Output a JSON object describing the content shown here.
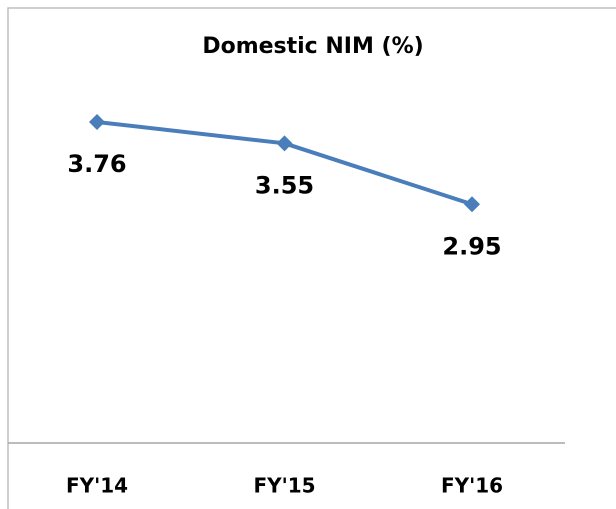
{
  "chart_data": {
    "type": "line",
    "title": "Domestic NIM (%)",
    "categories": [
      "FY'14",
      "FY'15",
      "FY'16"
    ],
    "series": [
      {
        "name": "Domestic NIM",
        "color": "#4a7ebb",
        "values": [
          3.76,
          3.55,
          2.95
        ]
      }
    ],
    "ylim": [
      0.6,
      4
    ]
  }
}
